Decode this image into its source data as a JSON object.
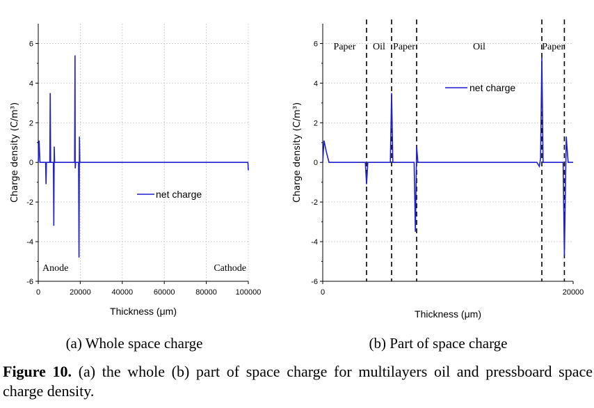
{
  "chart_data": [
    {
      "type": "line",
      "subtitle": "(a) Whole space charge",
      "xlabel": "Thickness (μm)",
      "ylabel": "Charge density (C/m³)",
      "xlim": [
        0,
        100000
      ],
      "ylim": [
        -6,
        7
      ],
      "x_ticks": [
        0,
        20000,
        40000,
        60000,
        80000,
        100000
      ],
      "x_tick_labels": [
        "0",
        "20000",
        "40000",
        "60000",
        "80000",
        "100000"
      ],
      "y_ticks": [
        -6,
        -4,
        -2,
        0,
        2,
        4,
        6
      ],
      "y_tick_labels": [
        "-6",
        "-4",
        "-2",
        "0",
        "2",
        "4",
        "6"
      ],
      "grid": true,
      "legend": "center-right",
      "annotations": [
        "Anode",
        "Cathode"
      ],
      "series": [
        {
          "name": "net charge",
          "color": "#1f1fcc",
          "points": [
            [
              0,
              0
            ],
            [
              400,
              1.1
            ],
            [
              800,
              0
            ],
            [
              3500,
              0
            ],
            [
              3700,
              -1.1
            ],
            [
              3900,
              0
            ],
            [
              5500,
              0
            ],
            [
              5700,
              3.5
            ],
            [
              5900,
              0
            ],
            [
              7200,
              0
            ],
            [
              7400,
              -3.2
            ],
            [
              7600,
              0.8
            ],
            [
              7800,
              0
            ],
            [
              17300,
              0
            ],
            [
              17500,
              5.4
            ],
            [
              17600,
              -0.3
            ],
            [
              17800,
              0
            ],
            [
              19200,
              0
            ],
            [
              19400,
              -4.8
            ],
            [
              19600,
              1.3
            ],
            [
              19800,
              0
            ],
            [
              99800,
              0
            ],
            [
              100000,
              -0.4
            ]
          ]
        }
      ]
    },
    {
      "type": "line",
      "subtitle": "(b) Part of space charge",
      "xlabel": "Thickness (μm)",
      "ylabel": "Charge density (C/m³)",
      "xlim": [
        0,
        20000
      ],
      "ylim": [
        -6,
        7
      ],
      "x_ticks": [
        0,
        20000
      ],
      "x_tick_labels": [
        "0",
        "20000"
      ],
      "y_ticks": [
        -6,
        -4,
        -2,
        0,
        2,
        4,
        6
      ],
      "y_tick_labels": [
        "-6",
        "-4",
        "-2",
        "0",
        "2",
        "4",
        "6"
      ],
      "grid": true,
      "legend": "top-center",
      "region_labels": [
        "Paper",
        "Oil",
        "Paper",
        "Oil",
        "Paper"
      ],
      "boundaries": [
        3500,
        5500,
        7500,
        17500,
        19300
      ],
      "series": [
        {
          "name": "net charge",
          "color": "#1f1fcc",
          "points": [
            [
              0,
              0
            ],
            [
              100,
              1.1
            ],
            [
              300,
              0.5
            ],
            [
              500,
              0
            ],
            [
              3400,
              0
            ],
            [
              3500,
              -1.1
            ],
            [
              3600,
              0
            ],
            [
              5400,
              0
            ],
            [
              5500,
              3.5
            ],
            [
              5600,
              0
            ],
            [
              7300,
              0
            ],
            [
              7400,
              -3.5
            ],
            [
              7500,
              0.8
            ],
            [
              7600,
              0
            ],
            [
              17100,
              0
            ],
            [
              17300,
              -0.2
            ],
            [
              17400,
              0.2
            ],
            [
              17500,
              5.3
            ],
            [
              17600,
              0
            ],
            [
              19200,
              0
            ],
            [
              19300,
              -4.7
            ],
            [
              19450,
              1.3
            ],
            [
              19600,
              0
            ],
            [
              20000,
              0
            ]
          ]
        }
      ]
    }
  ],
  "caption": {
    "label": "Figure 10.",
    "text": " (a) the whole (b) part of space charge for multilayers oil and pressboard space charge density."
  }
}
